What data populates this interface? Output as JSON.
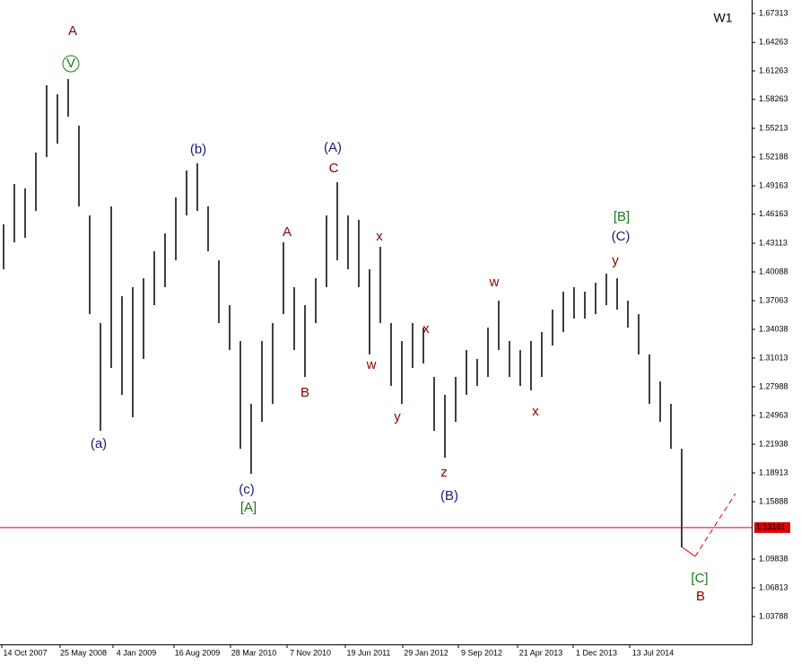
{
  "chart_data": {
    "type": "hilo",
    "timeframe": "W1",
    "color": "#000000",
    "ylim": [
      1.0086,
      1.6873
    ],
    "yticks": [
      1.67313,
      1.64263,
      1.61263,
      1.58263,
      1.55213,
      1.52188,
      1.49163,
      1.46163,
      1.43113,
      1.40088,
      1.37063,
      1.34038,
      1.31013,
      1.27988,
      1.24963,
      1.21938,
      1.18913,
      1.15888,
      1.09838,
      1.06813,
      1.03788
    ],
    "current_price": 1.13161,
    "current_price_color": "#dd0000",
    "x_labels": [
      "14 Oct 2007",
      "25 May 2008",
      "4 Jan 2009",
      "16 Aug 2009",
      "28 Mar 2010",
      "7 Nov 2010",
      "19 Jun 2011",
      "29 Jan 2012",
      "9 Sep 2012",
      "21 Apr 2013",
      "1 Dec 2013",
      "13 Jul 2014"
    ],
    "high": [
      1.451,
      1.4935,
      1.4888,
      1.5266,
      1.5975,
      1.588,
      1.6041,
      1.5549,
      1.4604,
      1.347,
      1.4699,
      1.3753,
      1.3848,
      1.3942,
      1.4226,
      1.4415,
      1.4793,
      1.5077,
      1.5152,
      1.4699,
      1.4131,
      1.3659,
      1.3281,
      1.2619,
      1.3281,
      1.347,
      1.4321,
      1.3848,
      1.3659,
      1.3942,
      1.4604,
      1.4954,
      1.4604,
      1.4557,
      1.4037,
      1.4273,
      1.347,
      1.3281,
      1.347,
      1.3423,
      1.2903,
      1.2714,
      1.2903,
      1.3186,
      1.3092,
      1.3423,
      1.3706,
      1.3281,
      1.3186,
      1.3281,
      1.3375,
      1.3612,
      1.3801,
      1.3848,
      1.3801,
      1.3895,
      1.399,
      1.3942,
      1.3706,
      1.3564,
      1.3139,
      1.2855,
      1.2619,
      1.2146
    ],
    "low": [
      1.4037,
      1.4321,
      1.4368,
      1.4651,
      1.5219,
      1.536,
      1.5644,
      1.4699,
      1.3564,
      1.2335,
      1.2997,
      1.2714,
      1.2477,
      1.3092,
      1.3659,
      1.3848,
      1.4131,
      1.4604,
      1.4651,
      1.4226,
      1.347,
      1.3186,
      1.2146,
      1.1882,
      1.243,
      1.2619,
      1.3564,
      1.3186,
      1.2903,
      1.347,
      1.3848,
      1.4131,
      1.4037,
      1.3848,
      1.3139,
      1.347,
      1.2808,
      1.2619,
      1.2997,
      1.3044,
      1.2335,
      1.2052,
      1.243,
      1.2714,
      1.2808,
      1.2903,
      1.3186,
      1.2903,
      1.2808,
      1.2761,
      1.2903,
      1.3233,
      1.3375,
      1.3517,
      1.3517,
      1.3564,
      1.3659,
      1.3612,
      1.3423,
      1.3139,
      1.2619,
      1.243,
      1.2146,
      1.1107
    ],
    "annotations": [
      {
        "text": "A",
        "color": "#8b0000"
      },
      {
        "text": "V",
        "color": "#1a7a1a"
      },
      {
        "text": "(b)",
        "color": "#1a1a80"
      },
      {
        "text": "(a)",
        "color": "#1a1a80"
      },
      {
        "text": "(c)",
        "color": "#1a1a80"
      },
      {
        "text": "[A]",
        "color": "#1a7a1a"
      },
      {
        "text": "A",
        "color": "#8b0000"
      },
      {
        "text": "B",
        "color": "#8b0000"
      },
      {
        "text": "(A)",
        "color": "#1a1a80"
      },
      {
        "text": "C",
        "color": "#8b0000"
      },
      {
        "text": "x",
        "color": "#8b0000"
      },
      {
        "text": "w",
        "color": "#8b0000"
      },
      {
        "text": "y",
        "color": "#8b0000"
      },
      {
        "text": "x",
        "color": "#8b0000"
      },
      {
        "text": "z",
        "color": "#8b0000"
      },
      {
        "text": "(B)",
        "color": "#1a1a80"
      },
      {
        "text": "w",
        "color": "#8b0000"
      },
      {
        "text": "x",
        "color": "#8b0000"
      },
      {
        "text": "[B]",
        "color": "#1a7a1a"
      },
      {
        "text": "(C)",
        "color": "#1a1a80"
      },
      {
        "text": "y",
        "color": "#8b0000"
      },
      {
        "text": "[C]",
        "color": "#1a7a1a"
      },
      {
        "text": "B",
        "color": "#8b0000"
      }
    ]
  }
}
